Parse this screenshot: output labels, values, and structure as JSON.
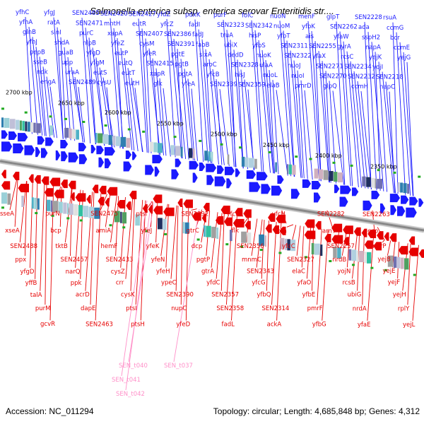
{
  "title": "Salmonella enterica subsp. enterica serovar Enteritidis str....",
  "footer": {
    "accession_label": "Accession: NC_011294",
    "stats_label": "Topology: circular; Length: 4,685,848 bp; Genes: 4,312"
  },
  "colors": {
    "forward_strand": "#1a1aff",
    "reverse_strand": "#e60000",
    "rna_genes": "#ff8fc8",
    "backbone": "#888888",
    "marker": "#22aa22"
  },
  "ticks": [
    "2700 kbp",
    "2650 kbp",
    "2600 kbp",
    "2550 kbp",
    "2500 kbp",
    "2450 kbp",
    "2400 kbp",
    "2350 kbp"
  ],
  "forward_genes": [
    "yfhC",
    "yfhA",
    "glnB",
    "yfhJ",
    "pepB",
    "sseB",
    "ndk",
    "engA",
    "yfgJ",
    "ratA",
    "sinI",
    "shdA",
    "guaB",
    "upp",
    "uraA",
    "SEN2489",
    "SEN2465",
    "SEN2471",
    "purC",
    "nlpB",
    "yfgD",
    "yfgM",
    "eutS",
    "cysU",
    "SEN2420",
    "mntH",
    "xapA",
    "yfeZ",
    "eutP",
    "eutQ",
    "eutT",
    "eutH",
    "SEN2427",
    "eutR",
    "SEN2407",
    "cysM",
    "yfeR",
    "SEN2415",
    "xapR",
    "glk",
    "yfdZ",
    "yfcZ",
    "SEN2386",
    "SEN2391",
    "pgtE",
    "pgtB",
    "pgtA",
    "yfeA",
    "pdxK",
    "fadI",
    "fadJ",
    "fabB",
    "sixA",
    "aroC",
    "yfcB",
    "SEN2339",
    "purF",
    "SEN2323",
    "truA",
    "ubiX",
    "dedD",
    "SEN2328",
    "hisJ",
    "SEN2359",
    "folC",
    "SEN2342",
    "hisP",
    "yfbS",
    "nuoK",
    "ulaA",
    "nuoL",
    "elaB",
    "nuoN",
    "nuoM",
    "yfbT",
    "SEN2311",
    "SEN2322",
    "nuoJ",
    "nuoI",
    "pmrD",
    "menF",
    "yfbK",
    "ais",
    "SEN2255",
    "yfaX",
    "SEN2271",
    "SEN2270",
    "glpQ",
    "glpT",
    "SEN2262",
    "yfaW",
    "gyrA",
    "rcsC",
    "SEN2234",
    "SEN2232",
    "ccmH",
    "SEN2228",
    "ada",
    "sspH2",
    "napA",
    "yejK",
    "yojI",
    "SEN2218",
    "napC",
    "rsuA",
    "ccmG",
    "bcr",
    "ccmE",
    "yejG"
  ],
  "reverse_genes": [
    "sseA",
    "xseA",
    "SEN2488",
    "ppx",
    "yfgD",
    "yffB",
    "talA",
    "purM",
    "gcvR",
    "purN",
    "bcp",
    "tktB",
    "SEN2457",
    "narQ",
    "ppk",
    "acrD",
    "dapE",
    "SEN2463",
    "SEN2475",
    "amiA",
    "hemF",
    "SEN2433",
    "cysZ",
    "crr",
    "cysK",
    "ptsI",
    "ptsH",
    "ptsI",
    "yfeJ",
    "yfeK",
    "yfeN",
    "yfeH",
    "ypeC",
    "SEN2390",
    "nupC",
    "yfeD",
    "SEN2392",
    "gtrC",
    "dcp",
    "pgtP",
    "gtrA",
    "yfdC",
    "SEN2357",
    "SEN2358",
    "fadL",
    "yfcN",
    "flk",
    "SEN2356",
    "mnmC",
    "SEN2343",
    "yfcG",
    "yfbQ",
    "SEN2314",
    "ackA",
    "yfcH",
    "pta",
    "yfcC",
    "SEN2327",
    "elaC",
    "yfaO",
    "yfbE",
    "pmrF",
    "yfbG",
    "SEN2282",
    "arnT",
    "SEN2257",
    "nrdB",
    "yojN",
    "rcsB",
    "ubiG",
    "nrdA",
    "yfaE",
    "SEN2263",
    "eco",
    "narP",
    "yejB",
    "yejE",
    "yejF",
    "yejH",
    "rplY",
    "yejL"
  ],
  "rna_genes": [
    "SEN_t040",
    "SEN_t041",
    "SEN_t042",
    "SEN_t037"
  ]
}
